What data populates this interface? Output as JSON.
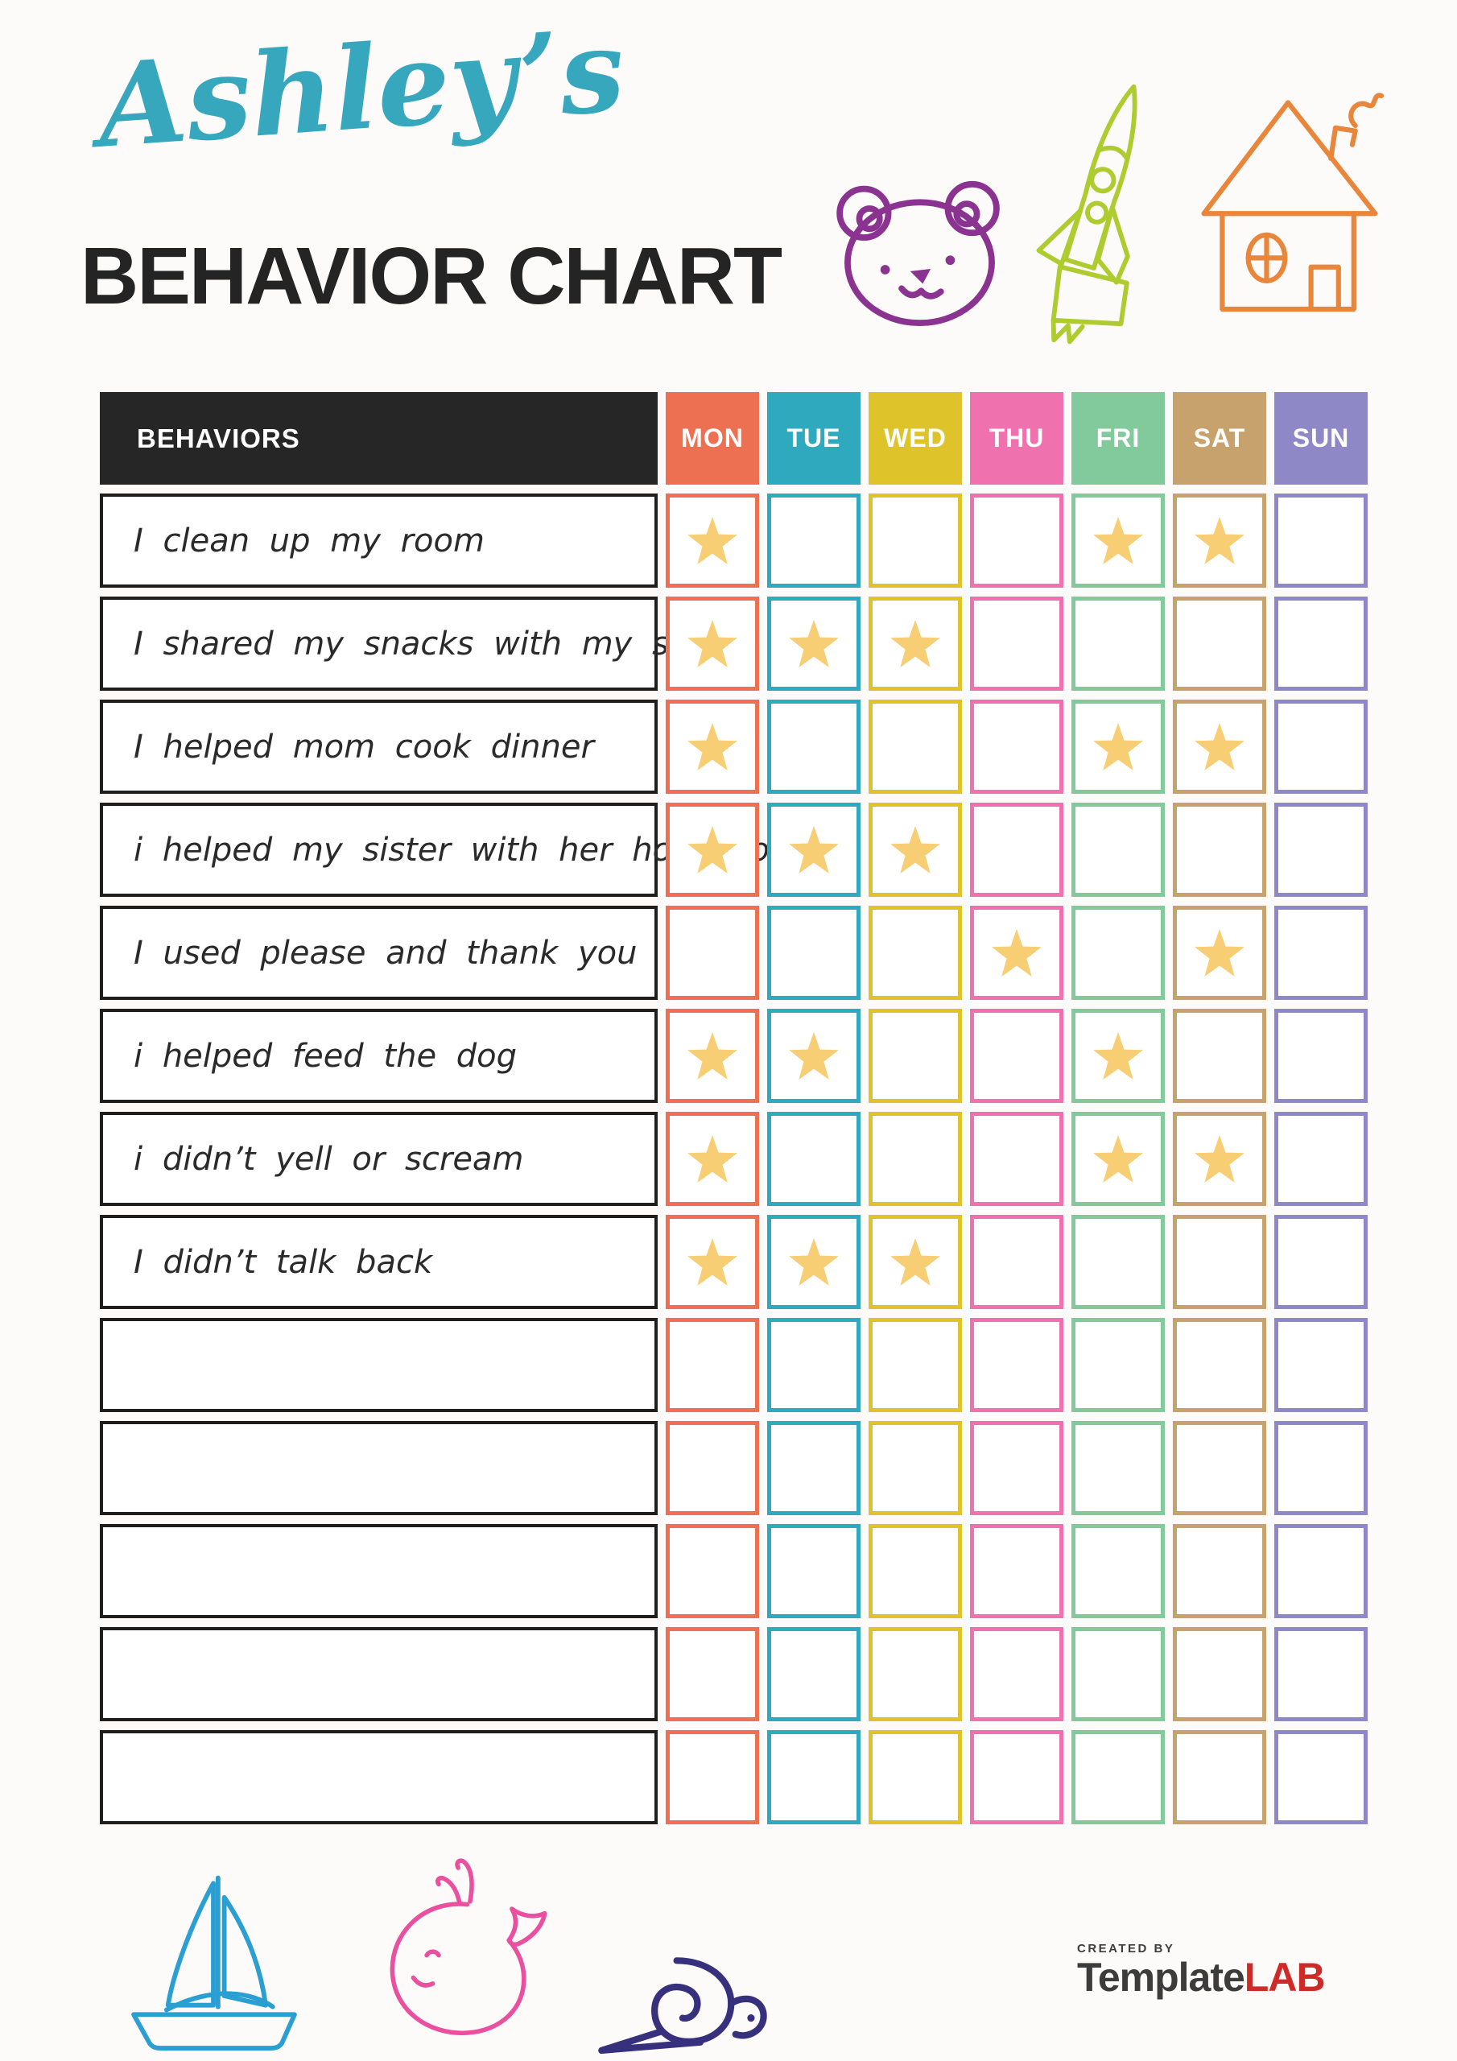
{
  "title": {
    "script_name": "Ashley’s",
    "heading": "BEHAVIOR CHART"
  },
  "colors": {
    "title_teal": "#36A7BC",
    "heading_black": "#242424",
    "header_bg": "#262626",
    "row_border": "#1E1E1E",
    "star": "#F7CE73",
    "bear": "#8A3390",
    "rocket": "#AECB2F",
    "house": "#E8873B",
    "boat": "#2B9FD1",
    "whale": "#E9509F",
    "snail": "#36307D",
    "brand_dark": "#3C3C3C",
    "brand_red": "#CE2A27"
  },
  "chart": {
    "behaviors_header": "BEHAVIORS",
    "days": [
      {
        "label": "MON",
        "color": "#ED7053"
      },
      {
        "label": "TUE",
        "color": "#2FA9BE"
      },
      {
        "label": "WED",
        "color": "#DFC32B"
      },
      {
        "label": "THU",
        "color": "#EF72AE"
      },
      {
        "label": "FRI",
        "color": "#82CA9C"
      },
      {
        "label": "SAT",
        "color": "#C8A26C"
      },
      {
        "label": "SUN",
        "color": "#8E89C6"
      }
    ],
    "rows": [
      {
        "behavior": "I clean up my room",
        "stars": [
          "MON",
          "FRI",
          "SAT"
        ]
      },
      {
        "behavior": "I shared my snacks with my sister",
        "stars": [
          "MON",
          "TUE",
          "WED"
        ]
      },
      {
        "behavior": "I helped mom cook dinner",
        "stars": [
          "MON",
          "FRI",
          "SAT"
        ]
      },
      {
        "behavior": "i helped my sister with her homework",
        "stars": [
          "MON",
          "TUE",
          "WED"
        ]
      },
      {
        "behavior": "I used please and thank you",
        "stars": [
          "THU",
          "SAT"
        ]
      },
      {
        "behavior": "i helped feed the dog",
        "stars": [
          "MON",
          "TUE",
          "FRI"
        ]
      },
      {
        "behavior": "i didn’t yell or scream",
        "stars": [
          "MON",
          "FRI",
          "SAT"
        ]
      },
      {
        "behavior": "I didn’t talk back",
        "stars": [
          "MON",
          "TUE",
          "WED"
        ]
      },
      {
        "behavior": "",
        "stars": []
      },
      {
        "behavior": "",
        "stars": []
      },
      {
        "behavior": "",
        "stars": []
      },
      {
        "behavior": "",
        "stars": []
      },
      {
        "behavior": "",
        "stars": []
      }
    ]
  },
  "doodles": {
    "top": [
      "teddy-bear-doodle",
      "rocket-doodle",
      "house-doodle"
    ],
    "bottom": [
      "sailboat-doodle",
      "whale-doodle",
      "snail-doodle"
    ]
  },
  "footer": {
    "created_by": "CREATED BY",
    "brand_dark": "Template",
    "brand_red": "LAB"
  }
}
